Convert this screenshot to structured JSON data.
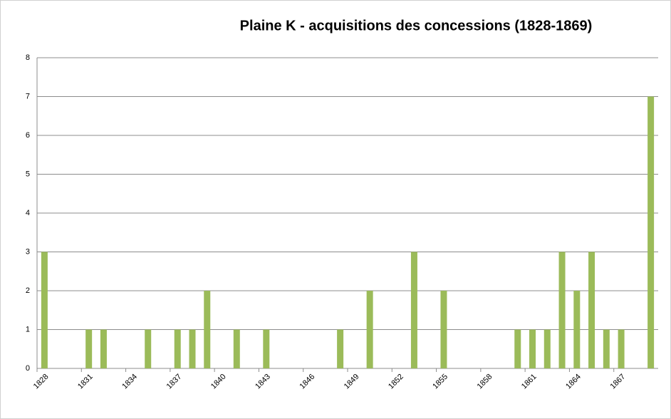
{
  "chart_data": {
    "type": "bar",
    "title": "Plaine K - acquisitions des concessions (1828-1869)",
    "categories": [
      "1828",
      null,
      null,
      "1831",
      null,
      null,
      "1834",
      null,
      null,
      "1837",
      null,
      null,
      "1840",
      null,
      null,
      "1843",
      null,
      null,
      "1846",
      null,
      null,
      "1849",
      null,
      null,
      "1852",
      null,
      null,
      "1855",
      null,
      null,
      "1858",
      null,
      null,
      "1861",
      null,
      null,
      "1864",
      null,
      null,
      "1867",
      null,
      null
    ],
    "values": [
      3,
      0,
      0,
      1,
      1,
      0,
      0,
      1,
      0,
      1,
      1,
      2,
      0,
      1,
      0,
      1,
      0,
      0,
      0,
      0,
      1,
      0,
      2,
      0,
      0,
      3,
      0,
      2,
      0,
      0,
      0,
      0,
      1,
      1,
      1,
      3,
      2,
      3,
      1,
      1,
      0,
      7
    ],
    "color": "#9bbb59",
    "ylim": [
      0,
      8
    ],
    "yticks": [
      0,
      1,
      2,
      3,
      4,
      5,
      6,
      7,
      8
    ],
    "grid": true
  }
}
